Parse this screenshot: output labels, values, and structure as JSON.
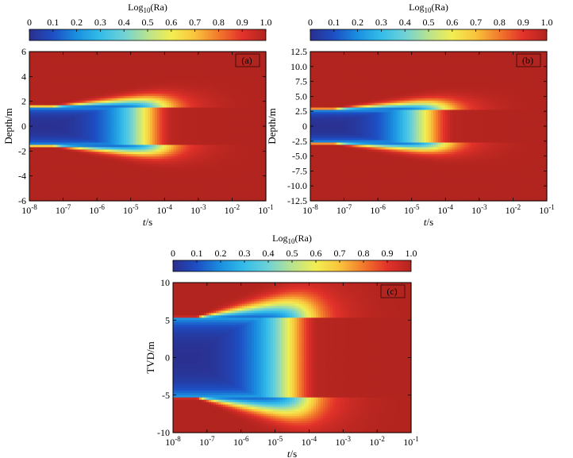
{
  "colorbar": {
    "title_main": "Log",
    "title_sub": "10",
    "title_tail": "(Ra)",
    "ticks": [
      "0",
      "0.1",
      "0.2",
      "0.3",
      "0.4",
      "0.5",
      "0.6",
      "0.7",
      "0.8",
      "0.9",
      "1.0"
    ],
    "stops": [
      "#2b2f8e",
      "#1d4fc4",
      "#1a8fe0",
      "#34bde8",
      "#6fd2d6",
      "#b8e38e",
      "#f2ee52",
      "#f9c33c",
      "#f2792b",
      "#e2322a",
      "#b2241f"
    ]
  },
  "chart_data": [
    {
      "type": "heatmap",
      "panel_label": "(a)",
      "xlabel_italic": "t",
      "xlabel_rest": "/s",
      "ylabel": "Depth/m",
      "xscale": "log",
      "xlim": [
        1e-08,
        0.1
      ],
      "ylim": [
        -6,
        6
      ],
      "x_ticks": [
        {
          "base": "10",
          "exp": "-8"
        },
        {
          "base": "10",
          "exp": "-7"
        },
        {
          "base": "10",
          "exp": "-6"
        },
        {
          "base": "10",
          "exp": "-5"
        },
        {
          "base": "10",
          "exp": "-4"
        },
        {
          "base": "10",
          "exp": "-3"
        },
        {
          "base": "10",
          "exp": "-2"
        },
        {
          "base": "10",
          "exp": "-1"
        }
      ],
      "y_ticks": [
        "6",
        "4",
        "2",
        "0",
        "-2",
        "-4",
        "-6"
      ],
      "layer_half_thickness": 1.5,
      "colorbar_range": [
        0,
        1.0
      ]
    },
    {
      "type": "heatmap",
      "panel_label": "(b)",
      "xlabel_italic": "t",
      "xlabel_rest": "/s",
      "ylabel": "Depth/m",
      "xscale": "log",
      "xlim": [
        1e-08,
        0.1
      ],
      "ylim": [
        -12.5,
        12.5
      ],
      "x_ticks": [
        {
          "base": "10",
          "exp": "-8"
        },
        {
          "base": "10",
          "exp": "-7"
        },
        {
          "base": "10",
          "exp": "-6"
        },
        {
          "base": "10",
          "exp": "-5"
        },
        {
          "base": "10",
          "exp": "-4"
        },
        {
          "base": "10",
          "exp": "-3"
        },
        {
          "base": "10",
          "exp": "-2"
        },
        {
          "base": "10",
          "exp": "-1"
        }
      ],
      "y_ticks": [
        "12.5",
        "10.0",
        "7.5",
        "5.0",
        "2.5",
        "0",
        "-2.5",
        "-5.0",
        "-7.5",
        "-10.0",
        "-12.5"
      ],
      "layer_half_thickness": 2.7,
      "colorbar_range": [
        0,
        1.0
      ]
    },
    {
      "type": "heatmap",
      "panel_label": "(c)",
      "xlabel_italic": "t",
      "xlabel_rest": "/s",
      "ylabel": "TVD/m",
      "xscale": "log",
      "xlim": [
        1e-08,
        0.1
      ],
      "ylim": [
        -10,
        10
      ],
      "x_ticks": [
        {
          "base": "10",
          "exp": "-8"
        },
        {
          "base": "10",
          "exp": "-7"
        },
        {
          "base": "10",
          "exp": "-6"
        },
        {
          "base": "10",
          "exp": "-5"
        },
        {
          "base": "10",
          "exp": "-4"
        },
        {
          "base": "10",
          "exp": "-3"
        },
        {
          "base": "10",
          "exp": "-2"
        },
        {
          "base": "10",
          "exp": "-1"
        }
      ],
      "y_ticks": [
        "10",
        "5",
        "0",
        "-5",
        "-10"
      ],
      "layer_half_thickness": 5.2,
      "colorbar_range": [
        0,
        1.0
      ]
    }
  ]
}
